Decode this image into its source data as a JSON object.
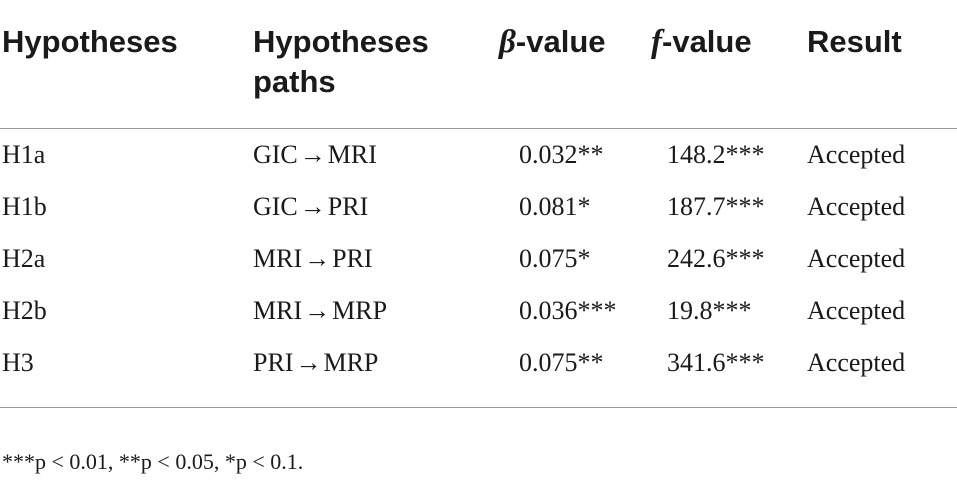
{
  "table": {
    "headers": {
      "hypotheses": "Hypotheses",
      "paths_line1": "Hypotheses",
      "paths_line2": "paths",
      "beta_symbol": "β",
      "beta_suffix": "-value",
      "f_symbol": "f",
      "f_suffix": "-value",
      "result": "Result"
    },
    "rows": [
      {
        "id": "H1a",
        "from": "GIC",
        "arrow": "→",
        "to": "MRI",
        "beta": "0.032**",
        "f": "148.2***",
        "result": "Accepted"
      },
      {
        "id": "H1b",
        "from": "GIC",
        "arrow": "→",
        "to": "PRI",
        "beta": "0.081*",
        "f": "187.7***",
        "result": "Accepted"
      },
      {
        "id": "H2a",
        "from": "MRI",
        "arrow": "→",
        "to": "PRI",
        "beta": "0.075*",
        "f": "242.6***",
        "result": "Accepted"
      },
      {
        "id": "H2b",
        "from": "MRI",
        "arrow": "→",
        "to": "MRP",
        "beta": "0.036***",
        "f": "19.8***",
        "result": "Accepted"
      },
      {
        "id": "H3",
        "from": "PRI",
        "arrow": "→",
        "to": "MRP",
        "beta": "0.075**",
        "f": "341.6***",
        "result": "Accepted"
      }
    ]
  },
  "footnote": "***p < 0.01, **p < 0.05, *p < 0.1."
}
